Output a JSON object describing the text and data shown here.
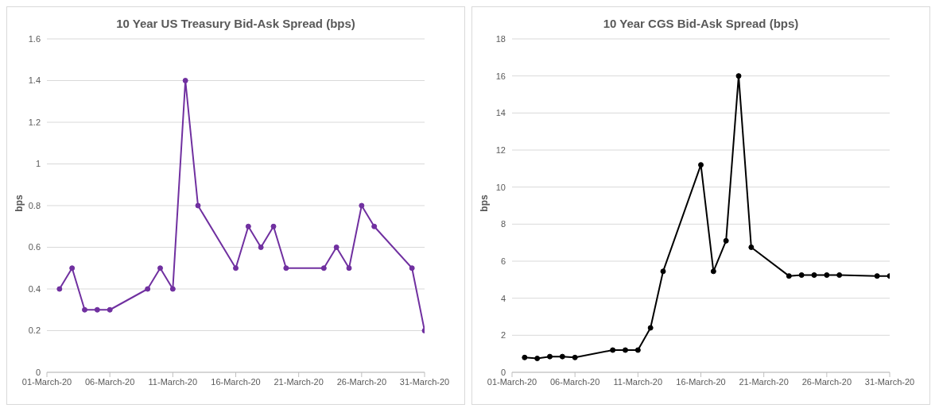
{
  "chart_data": [
    {
      "type": "line",
      "title": "10 Year US Treasury Bid-Ask Spread (bps)",
      "ylabel": "bps",
      "grid": "y",
      "marker": "circle",
      "line_style": "solid",
      "x": [
        "--03-02",
        "--03-03",
        "--03-04",
        "--03-05",
        "--03-06",
        "--03-09",
        "--03-10",
        "--03-11",
        "--03-12",
        "--03-13",
        "--03-16",
        "--03-17",
        "--03-18",
        "--03-19",
        "--03-20",
        "--03-23",
        "--03-24",
        "--03-25",
        "--03-26",
        "--03-27",
        "--03-30",
        "--03-31"
      ],
      "xlim": [
        "--03-01",
        "--03-31"
      ],
      "xticks": [
        {
          "value": "--03-01",
          "label": "01-March-20"
        },
        {
          "value": "--03-06",
          "label": "06-March-20"
        },
        {
          "value": "--03-11",
          "label": "11-March-20"
        },
        {
          "value": "--03-16",
          "label": "16-March-20"
        },
        {
          "value": "--03-21",
          "label": "21-March-20"
        },
        {
          "value": "--03-26",
          "label": "26-March-20"
        },
        {
          "value": "--03-31",
          "label": "31-March-20"
        }
      ],
      "ylim": [
        0,
        1.6
      ],
      "yticks": [
        0,
        0.2,
        0.4,
        0.6,
        0.8,
        1,
        1.2,
        1.4,
        1.6
      ],
      "series": [
        {
          "color": "#7030a0",
          "values": [
            0.4,
            0.5,
            0.3,
            0.3,
            0.3,
            0.4,
            0.5,
            0.4,
            1.4,
            0.8,
            0.5,
            0.7,
            0.6,
            0.7,
            0.5,
            0.5,
            0.6,
            0.5,
            0.8,
            0.7,
            0.5,
            0.2
          ]
        }
      ]
    },
    {
      "type": "line",
      "title": "10 Year CGS Bid-Ask Spread (bps)",
      "ylabel": "bps",
      "grid": "y",
      "marker": "circle",
      "line_style": "solid",
      "x": [
        "--03-02",
        "--03-03",
        "--03-04",
        "--03-05",
        "--03-06",
        "--03-09",
        "--03-10",
        "--03-11",
        "--03-12",
        "--03-13",
        "--03-16",
        "--03-17",
        "--03-18",
        "--03-19",
        "--03-20",
        "--03-23",
        "--03-24",
        "--03-25",
        "--03-26",
        "--03-27",
        "--03-30",
        "--03-31"
      ],
      "xlim": [
        "--03-01",
        "--03-31"
      ],
      "xticks": [
        {
          "value": "--03-01",
          "label": "01-March-20"
        },
        {
          "value": "--03-06",
          "label": "06-March-20"
        },
        {
          "value": "--03-11",
          "label": "11-March-20"
        },
        {
          "value": "--03-16",
          "label": "16-March-20"
        },
        {
          "value": "--03-21",
          "label": "21-March-20"
        },
        {
          "value": "--03-26",
          "label": "26-March-20"
        },
        {
          "value": "--03-31",
          "label": "31-March-20"
        }
      ],
      "ylim": [
        0,
        18
      ],
      "yticks": [
        0,
        2,
        4,
        6,
        8,
        10,
        12,
        14,
        16,
        18
      ],
      "series": [
        {
          "color": "#000000",
          "values": [
            0.8,
            0.75,
            0.85,
            0.85,
            0.8,
            1.2,
            1.2,
            1.2,
            2.4,
            5.45,
            11.2,
            5.45,
            7.1,
            16,
            6.75,
            5.2,
            5.25,
            5.25,
            5.25,
            5.25,
            5.2,
            5.2
          ]
        }
      ]
    }
  ]
}
